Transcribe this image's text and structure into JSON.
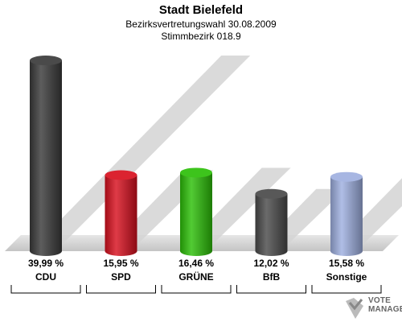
{
  "title": "Stadt Bielefeld",
  "subtitle": "Bezirksvertretungswahl 30.08.2009",
  "subtitle2": "Stimmbezirk 018.9",
  "logo_line1": "VOTE",
  "logo_line2": "MANAGER",
  "chart_data": {
    "type": "bar",
    "categories": [
      "CDU",
      "SPD",
      "GRÜNE",
      "BfB",
      "Sonstige"
    ],
    "values": [
      39.99,
      15.95,
      16.46,
      12.02,
      15.58
    ],
    "value_labels": [
      "39,99 %",
      "15,95 %",
      "16,46 %",
      "12,02 %",
      "15,58 %"
    ],
    "colors": [
      "#3a3a3a",
      "#d8101e",
      "#2cbf08",
      "#4a4a4a",
      "#9fb0e0"
    ],
    "ylim": [
      0,
      40
    ],
    "grid": false,
    "legend": "none"
  }
}
